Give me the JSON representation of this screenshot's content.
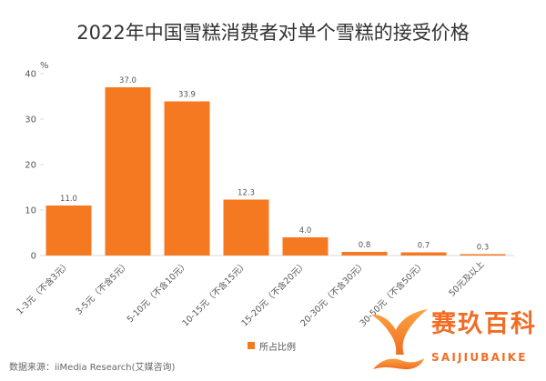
{
  "chart_data": {
    "type": "bar",
    "title": "2022年中国雪糕消费者对单个雪糕的接受价格",
    "categories": [
      "1-3元（不含3元）",
      "3-5元（不含5元）",
      "5-10元（不含10元）",
      "10-15元（不含15元）",
      "15-20元（不含20元）",
      "20-30元（不含30元）",
      "30-50元（不含50元）",
      "50元及以上"
    ],
    "series": [
      {
        "name": "所占比例",
        "values": [
          11.0,
          37.0,
          33.9,
          12.3,
          4.0,
          0.8,
          0.7,
          0.3
        ],
        "data_labels": [
          "11.0",
          "37.0",
          "33.9",
          "12.3",
          "4.0",
          "0.8",
          "0.7",
          "0.3"
        ],
        "color": "#f47920"
      }
    ],
    "yunit": "%",
    "ylim": [
      0,
      40
    ],
    "yticks": [
      0,
      10,
      20,
      30,
      40
    ],
    "grid": false,
    "legend": "bottom-center"
  },
  "source": "数据来源：iiMedia Research(艾媒咨询)",
  "watermark": {
    "name": "赛玖百科",
    "pinyin": "SAIJIUBAIKE",
    "icon": "whale-tail-icon",
    "colors": {
      "primary": "#f26c23",
      "light": "#f9a541"
    }
  }
}
